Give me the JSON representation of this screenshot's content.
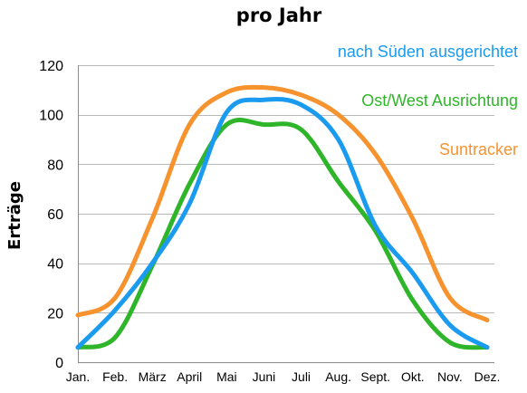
{
  "chart_data": {
    "type": "line",
    "title": "pro Jahr",
    "xlabel": "",
    "ylabel": "Erträge",
    "ylim": [
      0,
      120
    ],
    "yticks": [
      "0",
      "20",
      "40",
      "60",
      "80",
      "100",
      "120"
    ],
    "grid": "horizontal",
    "legend_placement": "top-right",
    "categories": [
      "Jan.",
      "Feb.",
      "März",
      "April",
      "Mai",
      "Juni",
      "Juli",
      "Aug.",
      "Sept.",
      "Okt.",
      "Nov.",
      "Dez."
    ],
    "series": [
      {
        "name": "nach Süden ausgerichtet",
        "color": "#1a9bef",
        "values": [
          6,
          21,
          40,
          64,
          101,
          106,
          104,
          90,
          55,
          36,
          15,
          6
        ]
      },
      {
        "name": "Ost/West Ausrichtung",
        "color": "#2fb529",
        "values": [
          6,
          10,
          39,
          72,
          96,
          96,
          94,
          73,
          53,
          25,
          8,
          6
        ]
      },
      {
        "name": "Suntracker",
        "color": "#f7932e",
        "values": [
          19,
          26,
          58,
          96,
          109,
          111,
          108,
          100,
          84,
          58,
          26,
          17
        ]
      }
    ]
  }
}
